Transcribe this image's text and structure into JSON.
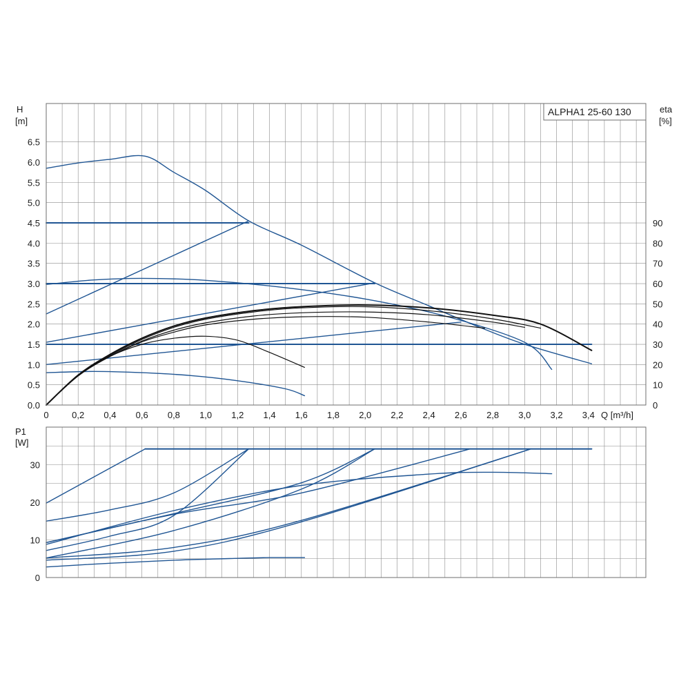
{
  "legend": "ALPHA1 25-60 130",
  "colors": {
    "blue": "#1f5593",
    "black": "#111111",
    "grid": "#8a8a8a"
  },
  "chart_data": [
    {
      "type": "line",
      "id": "head",
      "ylabel": "H",
      "yunit": "[m]",
      "y2label": "eta",
      "y2unit": "[%]",
      "xlabel": "Q [m³/h]",
      "xlim": [
        0,
        3.76
      ],
      "ylim": [
        0,
        7.45
      ],
      "y2lim": [
        0,
        149
      ],
      "grid": true,
      "x_ticks": [
        "0",
        "0,2",
        "0,4",
        "0,6",
        "0,8",
        "1,0",
        "1,2",
        "1,4",
        "1,6",
        "1,8",
        "2,0",
        "2,2",
        "2,4",
        "2,6",
        "2,8",
        "3,0",
        "3,2",
        "3,4"
      ],
      "y_ticks": [
        "0.0",
        "0.5",
        "1.0",
        "1.5",
        "2.0",
        "2.5",
        "3.0",
        "3.5",
        "4.0",
        "4.5",
        "5.0",
        "5.5",
        "6.0",
        "6.5"
      ],
      "y2_ticks": [
        "0",
        "10",
        "20",
        "30",
        "40",
        "50",
        "60",
        "70",
        "80",
        "90"
      ],
      "series": [
        {
          "color": "blue",
          "width": 1.4,
          "points": [
            [
              0,
              5.85
            ],
            [
              0.2,
              5.98
            ],
            [
              0.4,
              6.07
            ],
            [
              0.62,
              6.15
            ],
            [
              0.8,
              5.75
            ],
            [
              1.0,
              5.3
            ],
            [
              1.27,
              4.55
            ],
            [
              1.6,
              3.95
            ],
            [
              2.06,
              3.02
            ],
            [
              2.4,
              2.45
            ],
            [
              2.7,
              1.95
            ],
            [
              3.0,
              1.5
            ],
            [
              3.42,
              1.02
            ]
          ]
        },
        {
          "color": "blue",
          "width": 1.4,
          "points": [
            [
              0,
              2.25
            ],
            [
              1.27,
              4.55
            ]
          ]
        },
        {
          "color": "blue",
          "width": 2.0,
          "points": [
            [
              0,
              4.5
            ],
            [
              1.27,
              4.5
            ]
          ]
        },
        {
          "color": "blue",
          "width": 1.4,
          "points": [
            [
              0,
              1.55
            ],
            [
              2.06,
              3.02
            ]
          ]
        },
        {
          "color": "blue",
          "width": 2.0,
          "points": [
            [
              0,
              3.0
            ],
            [
              2.06,
              3.0
            ]
          ]
        },
        {
          "color": "blue",
          "width": 1.4,
          "points": [
            [
              0,
              1.0
            ],
            [
              2.6,
              2.05
            ]
          ]
        },
        {
          "color": "blue",
          "width": 2.0,
          "points": [
            [
              0,
              1.5
            ],
            [
              3.42,
              1.5
            ]
          ]
        },
        {
          "color": "blue",
          "width": 1.4,
          "points": [
            [
              0,
              2.98
            ],
            [
              0.3,
              3.09
            ],
            [
              0.6,
              3.13
            ],
            [
              1.0,
              3.08
            ],
            [
              1.5,
              2.9
            ],
            [
              2.0,
              2.62
            ],
            [
              2.5,
              2.2
            ],
            [
              3.0,
              1.55
            ],
            [
              3.17,
              0.88
            ]
          ]
        },
        {
          "color": "blue",
          "width": 1.4,
          "points": [
            [
              0,
              0.8
            ],
            [
              0.3,
              0.83
            ],
            [
              0.6,
              0.8
            ],
            [
              0.9,
              0.73
            ],
            [
              1.2,
              0.6
            ],
            [
              1.5,
              0.4
            ],
            [
              1.62,
              0.23
            ]
          ]
        },
        {
          "color": "black",
          "width": 1.2,
          "points": [
            [
              0,
              0
            ],
            [
              0.2,
              0.72
            ],
            [
              0.4,
              1.2
            ],
            [
              0.6,
              1.5
            ],
            [
              0.8,
              1.65
            ],
            [
              1.0,
              1.7
            ],
            [
              1.2,
              1.6
            ],
            [
              1.4,
              1.3
            ],
            [
              1.62,
              0.93
            ]
          ]
        },
        {
          "color": "black",
          "width": 1.2,
          "points": [
            [
              0,
              0
            ],
            [
              0.2,
              0.72
            ],
            [
              0.4,
              1.2
            ],
            [
              0.6,
              1.56
            ],
            [
              0.8,
              1.8
            ],
            [
              1.0,
              1.98
            ],
            [
              1.3,
              2.12
            ],
            [
              1.6,
              2.18
            ],
            [
              2.0,
              2.17
            ],
            [
              2.4,
              2.05
            ],
            [
              2.75,
              1.9
            ]
          ]
        },
        {
          "color": "black",
          "width": 1.2,
          "points": [
            [
              0,
              0
            ],
            [
              0.2,
              0.72
            ],
            [
              0.4,
              1.2
            ],
            [
              0.6,
              1.58
            ],
            [
              0.8,
              1.85
            ],
            [
              1.0,
              2.03
            ],
            [
              1.3,
              2.2
            ],
            [
              1.6,
              2.28
            ],
            [
              2.0,
              2.3
            ],
            [
              2.4,
              2.23
            ],
            [
              2.8,
              2.05
            ],
            [
              3.0,
              1.92
            ]
          ]
        },
        {
          "color": "black",
          "width": 1.2,
          "points": [
            [
              0,
              0
            ],
            [
              0.2,
              0.72
            ],
            [
              0.4,
              1.22
            ],
            [
              0.6,
              1.62
            ],
            [
              0.8,
              1.92
            ],
            [
              1.0,
              2.12
            ],
            [
              1.3,
              2.3
            ],
            [
              1.6,
              2.4
            ],
            [
              2.0,
              2.43
            ],
            [
              2.4,
              2.33
            ],
            [
              2.8,
              2.13
            ],
            [
              3.1,
              1.9
            ]
          ]
        },
        {
          "color": "black",
          "width": 2.0,
          "points": [
            [
              0,
              0
            ],
            [
              0.2,
              0.74
            ],
            [
              0.4,
              1.25
            ],
            [
              0.6,
              1.65
            ],
            [
              0.8,
              1.95
            ],
            [
              1.0,
              2.15
            ],
            [
              1.3,
              2.33
            ],
            [
              1.6,
              2.43
            ],
            [
              2.0,
              2.47
            ],
            [
              2.4,
              2.4
            ],
            [
              2.8,
              2.22
            ],
            [
              3.1,
              2.0
            ],
            [
              3.42,
              1.35
            ]
          ]
        }
      ]
    },
    {
      "type": "line",
      "id": "power",
      "ylabel": "P1",
      "yunit": "[W]",
      "xlim": [
        0,
        3.76
      ],
      "ylim": [
        0,
        40
      ],
      "grid": true,
      "y_ticks": [
        "0",
        "10",
        "20",
        "30"
      ],
      "series": [
        {
          "color": "blue",
          "width": 2.0,
          "points": [
            [
              0.62,
              34.2
            ],
            [
              3.42,
              34.2
            ]
          ]
        },
        {
          "color": "blue",
          "width": 1.4,
          "points": [
            [
              0,
              19.8
            ],
            [
              0.62,
              34.2
            ]
          ]
        },
        {
          "color": "blue",
          "width": 1.4,
          "points": [
            [
              0,
              15.0
            ],
            [
              0.4,
              18.0
            ],
            [
              0.8,
              22.5
            ],
            [
              1.27,
              34.2
            ]
          ]
        },
        {
          "color": "blue",
          "width": 1.4,
          "points": [
            [
              0,
              7.2
            ],
            [
              0.4,
              11.0
            ],
            [
              0.8,
              16.5
            ],
            [
              1.27,
              34.2
            ]
          ]
        },
        {
          "color": "blue",
          "width": 1.4,
          "points": [
            [
              0,
              9.3
            ],
            [
              0.8,
              17.0
            ],
            [
              1.6,
              25.2
            ],
            [
              2.06,
              34.2
            ]
          ]
        },
        {
          "color": "blue",
          "width": 1.4,
          "points": [
            [
              0,
              5.2
            ],
            [
              0.8,
              12.5
            ],
            [
              1.6,
              23.5
            ],
            [
              2.06,
              34.2
            ]
          ]
        },
        {
          "color": "blue",
          "width": 1.4,
          "points": [
            [
              0,
              9.3
            ],
            [
              0.8,
              16.8
            ],
            [
              1.6,
              22.5
            ],
            [
              2.66,
              34.2
            ]
          ]
        },
        {
          "color": "blue",
          "width": 1.4,
          "points": [
            [
              0,
              5.2
            ],
            [
              0.8,
              8.0
            ],
            [
              1.6,
              15.2
            ],
            [
              3.04,
              34.2
            ]
          ]
        },
        {
          "color": "blue",
          "width": 1.4,
          "points": [
            [
              0,
              4.6
            ],
            [
              0.8,
              7.0
            ],
            [
              1.6,
              14.8
            ],
            [
              3.04,
              34.2
            ]
          ]
        },
        {
          "color": "blue",
          "width": 1.4,
          "points": [
            [
              0,
              8.8
            ],
            [
              0.8,
              17.8
            ],
            [
              1.6,
              24.5
            ],
            [
              2.4,
              27.5
            ],
            [
              2.8,
              28.0
            ],
            [
              3.17,
              27.6
            ]
          ]
        },
        {
          "color": "blue",
          "width": 1.4,
          "points": [
            [
              0,
              2.8
            ],
            [
              0.4,
              3.8
            ],
            [
              0.8,
              4.6
            ],
            [
              1.2,
              5.1
            ],
            [
              1.4,
              5.3
            ],
            [
              1.62,
              5.3
            ]
          ]
        }
      ]
    }
  ]
}
